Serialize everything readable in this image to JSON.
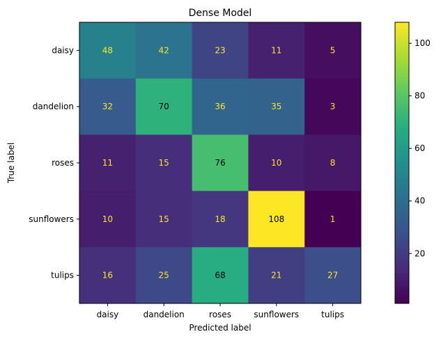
{
  "chart_data": {
    "type": "heatmap",
    "title": "Dense Model",
    "xlabel": "Predicted label",
    "ylabel": "True label",
    "x_categories": [
      "daisy",
      "dandelion",
      "roses",
      "sunflowers",
      "tulips"
    ],
    "y_categories": [
      "daisy",
      "dandelion",
      "roses",
      "sunflowers",
      "tulips"
    ],
    "values": [
      [
        48,
        42,
        23,
        11,
        5
      ],
      [
        32,
        70,
        36,
        35,
        3
      ],
      [
        11,
        15,
        76,
        10,
        8
      ],
      [
        10,
        15,
        18,
        108,
        1
      ],
      [
        16,
        25,
        68,
        21,
        27
      ]
    ],
    "colormap": "viridis",
    "vmin": 1,
    "vmax": 108,
    "colorbar_ticks": [
      20,
      40,
      60,
      80,
      100
    ],
    "text_color_dark": "#000000",
    "text_color_light": "#fde725"
  }
}
